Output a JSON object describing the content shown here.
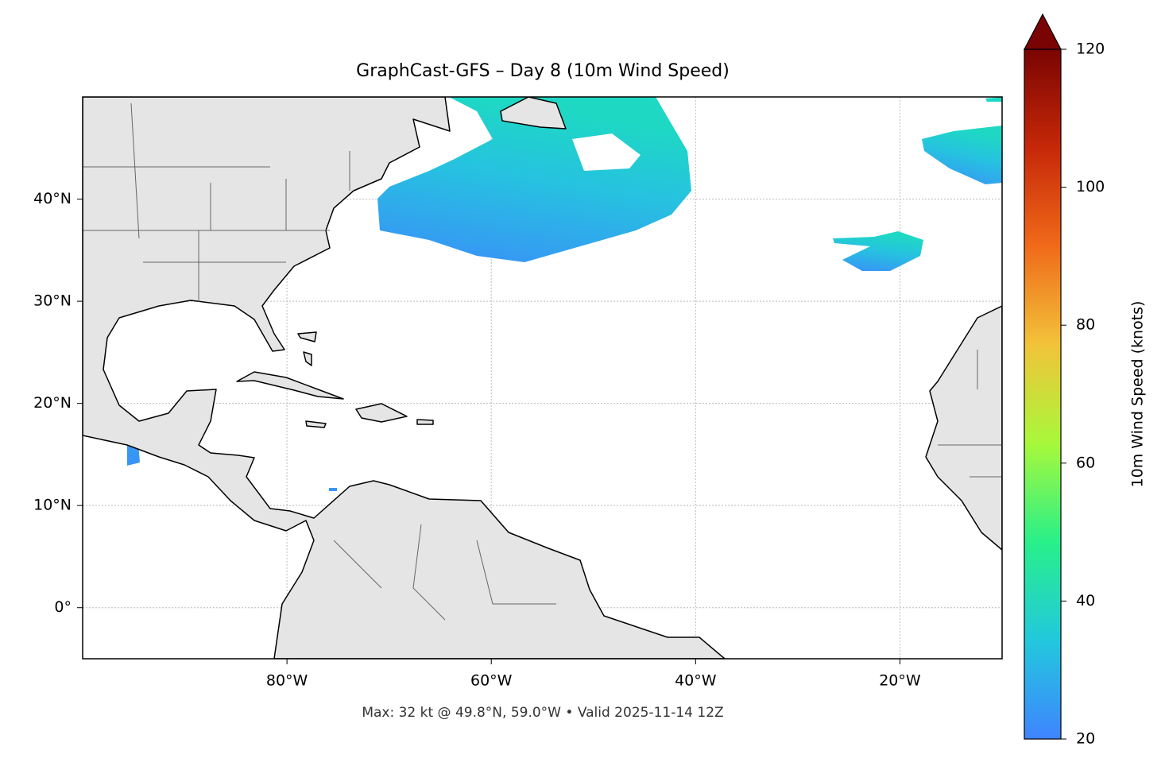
{
  "chart_data": {
    "type": "map",
    "title": "GraphCast-GFS – Day 8 (10m Wind Speed)",
    "annotation": "Max: 32 kt @ 49.8°N, 59.0°W • Valid 2025-11-14 12Z",
    "xlim": [
      -100,
      -10
    ],
    "ylim": [
      -5,
      50
    ],
    "xticks": [
      {
        "value": -80,
        "label": "80°W"
      },
      {
        "value": -60,
        "label": "60°W"
      },
      {
        "value": -40,
        "label": "40°W"
      },
      {
        "value": -20,
        "label": "20°W"
      }
    ],
    "yticks": [
      {
        "value": 0,
        "label": "0°"
      },
      {
        "value": 10,
        "label": "10°N"
      },
      {
        "value": 20,
        "label": "20°N"
      },
      {
        "value": 30,
        "label": "30°N"
      },
      {
        "value": 40,
        "label": "40°N"
      }
    ],
    "grid": true,
    "colorbar": {
      "label": "10m Wind Speed (knots)",
      "clim": [
        20,
        120
      ],
      "ticks": [
        20,
        40,
        60,
        80,
        100,
        120
      ],
      "colormap": [
        "#3f84ff",
        "#22c8dd",
        "#28f08a",
        "#a8f83a",
        "#f2c33a",
        "#f06a1a",
        "#c62808",
        "#7a0403"
      ]
    }
  }
}
